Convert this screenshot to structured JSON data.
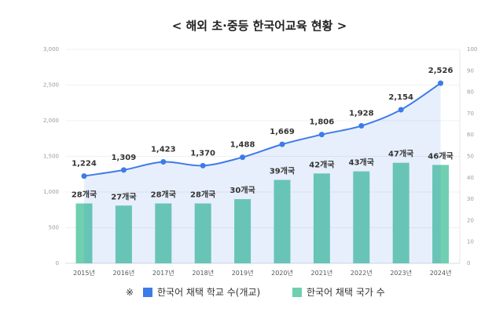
{
  "chart_data": {
    "type": "bar",
    "title": "< 해외 초·중등 한국어교육 현황 >",
    "categories": [
      "2015년",
      "2016년",
      "2017년",
      "2018년",
      "2019년",
      "2020년",
      "2021년",
      "2022년",
      "2023년",
      "2024년"
    ],
    "series": [
      {
        "name": "한국어 채택 학교 수(개교)",
        "type": "line-area",
        "axis": "left",
        "color": "#3d7be8",
        "values": [
          1224,
          1309,
          1423,
          1370,
          1488,
          1669,
          1806,
          1928,
          2154,
          2526
        ],
        "labels": [
          "1,224",
          "1,309",
          "1,423",
          "1,370",
          "1,488",
          "1,669",
          "1,806",
          "1,928",
          "2,154",
          "2,526"
        ]
      },
      {
        "name": "한국어 채택 국가 수",
        "type": "bar",
        "axis": "right",
        "color": "#6fcfb0",
        "values": [
          28,
          27,
          28,
          28,
          30,
          39,
          42,
          43,
          47,
          46
        ],
        "labels": [
          "28개국",
          "27개국",
          "28개국",
          "28개국",
          "30개국",
          "39개국",
          "42개국",
          "43개국",
          "47개국",
          "46개국"
        ]
      }
    ],
    "left_axis": {
      "range": [
        0,
        3000
      ],
      "ticks": [
        "0",
        "500",
        "1,000",
        "1,500",
        "2,000",
        "2,500",
        "3,000"
      ]
    },
    "right_axis": {
      "range": [
        0,
        100
      ],
      "ticks": [
        "0",
        "10",
        "20",
        "30",
        "40",
        "50",
        "60",
        "70",
        "80",
        "90",
        "100"
      ]
    },
    "legend_prefix": "※",
    "legend_position": "bottom"
  }
}
